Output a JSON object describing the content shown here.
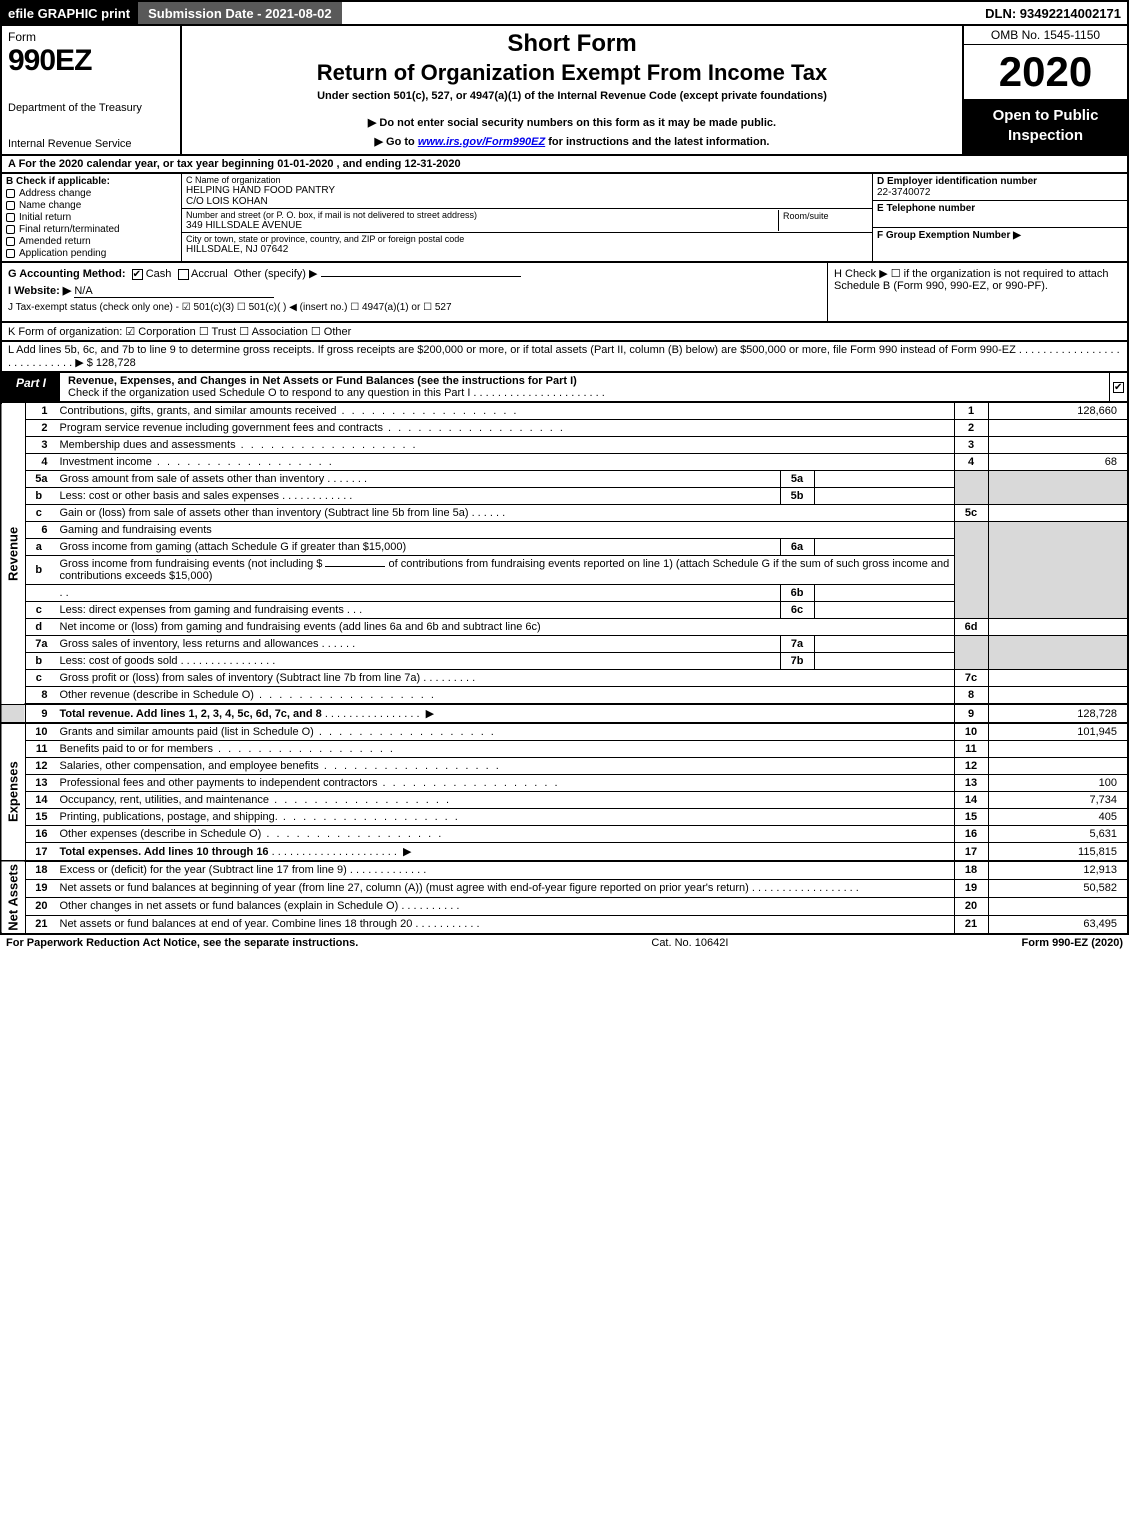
{
  "topbar": {
    "efile": "efile GRAPHIC print",
    "submission": "Submission Date - 2021-08-02",
    "dln": "DLN: 93492214002171"
  },
  "header": {
    "form_word": "Form",
    "form_no": "990EZ",
    "dept1": "Department of the Treasury",
    "dept2": "Internal Revenue Service",
    "short": "Short Form",
    "title": "Return of Organization Exempt From Income Tax",
    "sub1": "Under section 501(c), 527, or 4947(a)(1) of the Internal Revenue Code (except private foundations)",
    "sub2": "▶ Do not enter social security numbers on this form as it may be made public.",
    "sub3_pre": "▶ Go to ",
    "sub3_link": "www.irs.gov/Form990EZ",
    "sub3_post": " for instructions and the latest information.",
    "omb": "OMB No. 1545-1150",
    "year": "2020",
    "open": "Open to Public Inspection"
  },
  "rowA": "A  For the 2020 calendar year, or tax year beginning 01-01-2020 , and ending 12-31-2020",
  "colB": {
    "hdr": "B  Check if applicable:",
    "opts": [
      "Address change",
      "Name change",
      "Initial return",
      "Final return/terminated",
      "Amended return",
      "Application pending"
    ]
  },
  "colC": {
    "c_lbl": "C Name of organization",
    "name1": "HELPING HAND FOOD PANTRY",
    "name2": "C/O LOIS KOHAN",
    "addr_lbl": "Number and street (or P. O. box, if mail is not delivered to street address)",
    "addr": "349 HILLSDALE AVENUE",
    "room_lbl": "Room/suite",
    "city_lbl": "City or town, state or province, country, and ZIP or foreign postal code",
    "city": "HILLSDALE, NJ  07642"
  },
  "colDEF": {
    "d_lbl": "D Employer identification number",
    "d_val": "22-3740072",
    "e_lbl": "E Telephone number",
    "e_val": "",
    "f_lbl": "F Group Exemption Number   ▶",
    "f_val": ""
  },
  "rowG": {
    "g": "G Accounting Method:",
    "cash": "Cash",
    "accr": "Accrual",
    "other": "Other (specify) ▶"
  },
  "rowH": "H  Check ▶  ☐  if the organization is not required to attach Schedule B (Form 990, 990-EZ, or 990-PF).",
  "rowI": {
    "lbl": "I Website: ▶",
    "val": "N/A"
  },
  "rowJ": "J Tax-exempt status (check only one) - ☑ 501(c)(3)  ☐ 501(c)(  ) ◀ (insert no.)  ☐ 4947(a)(1) or  ☐ 527",
  "rowK": "K Form of organization:   ☑ Corporation   ☐ Trust   ☐ Association   ☐ Other",
  "rowL": "L Add lines 5b, 6c, and 7b to line 9 to determine gross receipts. If gross receipts are $200,000 or more, or if total assets (Part II, column (B) below) are $500,000 or more, file Form 990 instead of Form 990-EZ  .  .  .  .  .  .  .  .  .  .  .  .  .  .  .  .  .  .  .  .  .  .  .  .  .  .  .  .  ▶ $ 128,728",
  "part1": {
    "tag": "Part I",
    "txt1": "Revenue, Expenses, and Changes in Net Assets or Fund Balances (see the instructions for Part I)",
    "txt2": "Check if the organization used Schedule O to respond to any question in this Part I  .  .  .  .  .  .  .  .  .  .  .  .  .  .  .  .  .  .  .  .  .  ."
  },
  "side_labels": {
    "rev": "Revenue",
    "exp": "Expenses",
    "na": "Net Assets"
  },
  "lines": {
    "l1": {
      "n": "1",
      "d": "Contributions, gifts, grants, and similar amounts received",
      "rn": "1",
      "v": "128,660"
    },
    "l2": {
      "n": "2",
      "d": "Program service revenue including government fees and contracts",
      "rn": "2",
      "v": ""
    },
    "l3": {
      "n": "3",
      "d": "Membership dues and assessments",
      "rn": "3",
      "v": ""
    },
    "l4": {
      "n": "4",
      "d": "Investment income",
      "rn": "4",
      "v": "68"
    },
    "l5a": {
      "n": "5a",
      "d": "Gross amount from sale of assets other than inventory",
      "mb": "5a"
    },
    "l5b": {
      "n": "b",
      "d": "Less: cost or other basis and sales expenses",
      "mb": "5b"
    },
    "l5c": {
      "n": "c",
      "d": "Gain or (loss) from sale of assets other than inventory (Subtract line 5b from line 5a)",
      "rn": "5c",
      "v": ""
    },
    "l6": {
      "n": "6",
      "d": "Gaming and fundraising events"
    },
    "l6a": {
      "n": "a",
      "d": "Gross income from gaming (attach Schedule G if greater than $15,000)",
      "mb": "6a"
    },
    "l6b": {
      "n": "b",
      "d1": "Gross income from fundraising events (not including $",
      "d2": "of contributions from fundraising events reported on line 1) (attach Schedule G if the sum of such gross income and contributions exceeds $15,000)",
      "mb": "6b"
    },
    "l6c": {
      "n": "c",
      "d": "Less: direct expenses from gaming and fundraising events",
      "mb": "6c"
    },
    "l6d": {
      "n": "d",
      "d": "Net income or (loss) from gaming and fundraising events (add lines 6a and 6b and subtract line 6c)",
      "rn": "6d",
      "v": ""
    },
    "l7a": {
      "n": "7a",
      "d": "Gross sales of inventory, less returns and allowances",
      "mb": "7a"
    },
    "l7b": {
      "n": "b",
      "d": "Less: cost of goods sold",
      "mb": "7b"
    },
    "l7c": {
      "n": "c",
      "d": "Gross profit or (loss) from sales of inventory (Subtract line 7b from line 7a)",
      "rn": "7c",
      "v": ""
    },
    "l8": {
      "n": "8",
      "d": "Other revenue (describe in Schedule O)",
      "rn": "8",
      "v": ""
    },
    "l9": {
      "n": "9",
      "d": "Total revenue. Add lines 1, 2, 3, 4, 5c, 6d, 7c, and 8",
      "rn": "9",
      "v": "128,728"
    },
    "l10": {
      "n": "10",
      "d": "Grants and similar amounts paid (list in Schedule O)",
      "rn": "10",
      "v": "101,945"
    },
    "l11": {
      "n": "11",
      "d": "Benefits paid to or for members",
      "rn": "11",
      "v": ""
    },
    "l12": {
      "n": "12",
      "d": "Salaries, other compensation, and employee benefits",
      "rn": "12",
      "v": ""
    },
    "l13": {
      "n": "13",
      "d": "Professional fees and other payments to independent contractors",
      "rn": "13",
      "v": "100"
    },
    "l14": {
      "n": "14",
      "d": "Occupancy, rent, utilities, and maintenance",
      "rn": "14",
      "v": "7,734"
    },
    "l15": {
      "n": "15",
      "d": "Printing, publications, postage, and shipping.",
      "rn": "15",
      "v": "405"
    },
    "l16": {
      "n": "16",
      "d": "Other expenses (describe in Schedule O)",
      "rn": "16",
      "v": "5,631"
    },
    "l17": {
      "n": "17",
      "d": "Total expenses. Add lines 10 through 16",
      "rn": "17",
      "v": "115,815"
    },
    "l18": {
      "n": "18",
      "d": "Excess or (deficit) for the year (Subtract line 17 from line 9)",
      "rn": "18",
      "v": "12,913"
    },
    "l19": {
      "n": "19",
      "d": "Net assets or fund balances at beginning of year (from line 27, column (A)) (must agree with end-of-year figure reported on prior year's return)",
      "rn": "19",
      "v": "50,582"
    },
    "l20": {
      "n": "20",
      "d": "Other changes in net assets or fund balances (explain in Schedule O)",
      "rn": "20",
      "v": ""
    },
    "l21": {
      "n": "21",
      "d": "Net assets or fund balances at end of year. Combine lines 18 through 20",
      "rn": "21",
      "v": "63,495"
    }
  },
  "footer": {
    "left": "For Paperwork Reduction Act Notice, see the separate instructions.",
    "mid": "Cat. No. 10642I",
    "right": "Form 990-EZ (2020)"
  }
}
